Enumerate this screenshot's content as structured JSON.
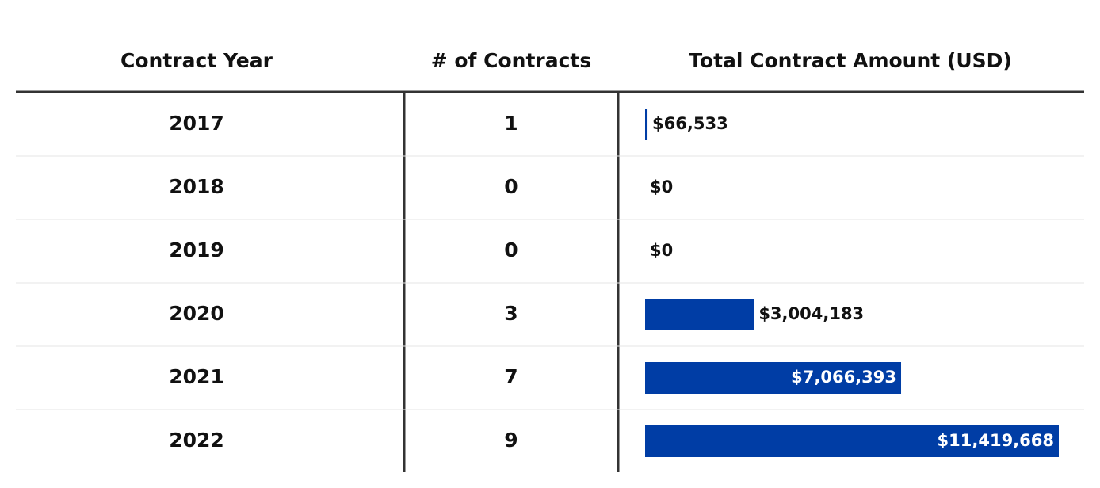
{
  "table": {
    "headers": [
      "Contract Year",
      "# of Contracts",
      "Total Contract Amount (USD)"
    ],
    "bar_color": "#003da5",
    "rows": [
      {
        "year": "2017",
        "contracts": 1,
        "amount": 66533,
        "amount_label": "$66,533"
      },
      {
        "year": "2018",
        "contracts": 0,
        "amount": 0,
        "amount_label": "$0"
      },
      {
        "year": "2019",
        "contracts": 0,
        "amount": 0,
        "amount_label": "$0"
      },
      {
        "year": "2020",
        "contracts": 3,
        "amount": 3004183,
        "amount_label": "$3,004,183"
      },
      {
        "year": "2021",
        "contracts": 7,
        "amount": 7066393,
        "amount_label": "$7,066,393"
      },
      {
        "year": "2022",
        "contracts": 9,
        "amount": 11419668,
        "amount_label": "$11,419,668"
      }
    ]
  }
}
